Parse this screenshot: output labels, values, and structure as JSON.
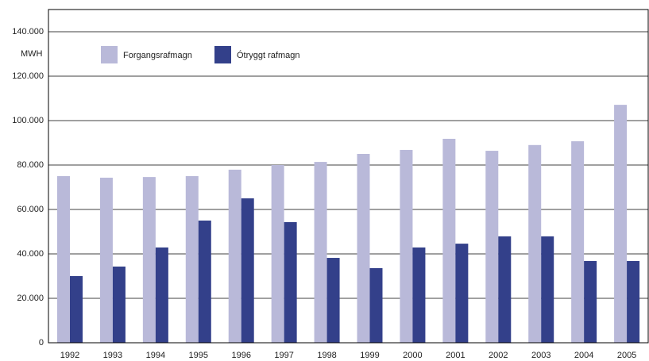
{
  "chart_data": {
    "type": "bar",
    "y_label": "MWH",
    "categories": [
      "1992",
      "1993",
      "1994",
      "1995",
      "1996",
      "1997",
      "1998",
      "1999",
      "2000",
      "2001",
      "2002",
      "2003",
      "2004",
      "2005"
    ],
    "series": [
      {
        "name": "Forgangsrafmagn",
        "color": "#b9b9d9",
        "values": [
          75000,
          74300,
          74600,
          75000,
          77900,
          80000,
          81400,
          85000,
          86800,
          91800,
          86400,
          89000,
          90700,
          107100
        ]
      },
      {
        "name": "Ótryggt rafmagn",
        "color": "#33408a",
        "values": [
          30000,
          34300,
          42900,
          55000,
          65000,
          54300,
          38200,
          33600,
          42900,
          44600,
          47900,
          47900,
          36800,
          36800
        ]
      }
    ],
    "ylim": [
      0,
      150000
    ],
    "yticks": [
      0,
      {
        "value": 20000,
        "label": "20.000"
      },
      {
        "value": 40000,
        "label": "40.000"
      },
      {
        "value": 60000,
        "label": "60.000"
      },
      {
        "value": 80000,
        "label": "80.000"
      },
      {
        "value": 100000,
        "label": "100.000"
      },
      {
        "value": 120000,
        "label": "120.000"
      },
      {
        "value": 140000,
        "label": "140.000"
      }
    ],
    "grid": true,
    "legend": "top-left"
  }
}
